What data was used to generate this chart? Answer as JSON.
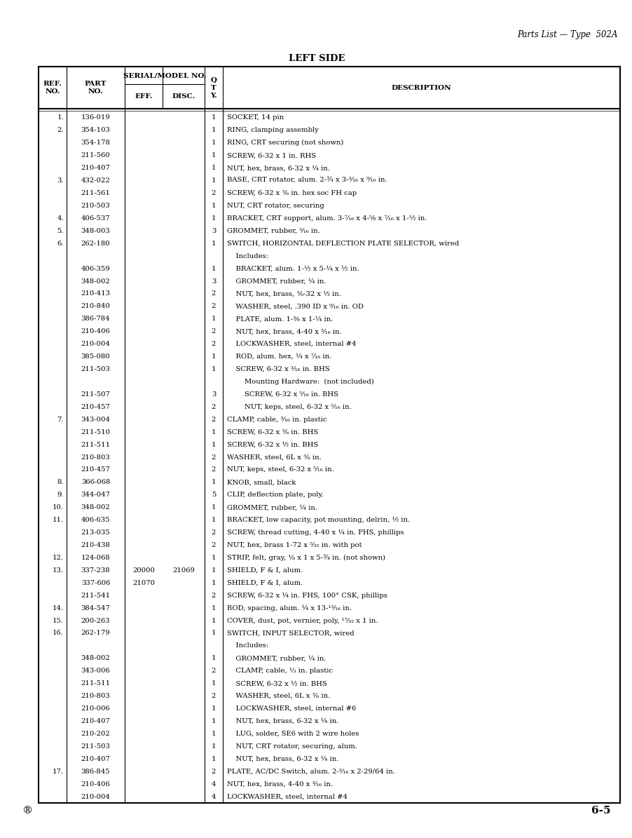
{
  "page_header_right": "Parts List — Type  502A",
  "page_title": "LEFT SIDE",
  "page_footer_left": "®",
  "page_footer_right": "6-5",
  "rows": [
    {
      "ref": "1.",
      "part": "136-019",
      "eff": "",
      "disc": "",
      "qty": "1",
      "desc": "SOCKET, 14 pin"
    },
    {
      "ref": "2.",
      "part": "354-103",
      "eff": "",
      "disc": "",
      "qty": "1",
      "desc": "RING, clamping assembly"
    },
    {
      "ref": "",
      "part": "354-178",
      "eff": "",
      "disc": "",
      "qty": "1",
      "desc": "RING, CRT securing (not shown)"
    },
    {
      "ref": "",
      "part": "211-560",
      "eff": "",
      "disc": "",
      "qty": "1",
      "desc": "SCREW, 6-32 x 1 in. RHS"
    },
    {
      "ref": "",
      "part": "210-407",
      "eff": "",
      "disc": "",
      "qty": "1",
      "desc": "NUT, hex, brass, 6-32 x ¼ in."
    },
    {
      "ref": "3.",
      "part": "432-022",
      "eff": "",
      "disc": "",
      "qty": "1",
      "desc": "BASE, CRT rotator, alum. 2-¾ x 3-³⁄₁₆ x ⁹⁄₁₆ in."
    },
    {
      "ref": "",
      "part": "211-561",
      "eff": "",
      "disc": "",
      "qty": "2",
      "desc": "SCREW, 6-32 x ⅜ in. hex soc FH cap"
    },
    {
      "ref": "",
      "part": "210-503",
      "eff": "",
      "disc": "",
      "qty": "1",
      "desc": "NUT, CRT rotator, securing"
    },
    {
      "ref": "4.",
      "part": "406-537",
      "eff": "",
      "disc": "",
      "qty": "1",
      "desc": "BRACKET, CRT support, alum. 3-⁷⁄₁₆ x 4-⁵⁄₈ x ⁷⁄₁₆ x 1-½ in."
    },
    {
      "ref": "5.",
      "part": "348-003",
      "eff": "",
      "disc": "",
      "qty": "3",
      "desc": "GROMMET, rubber, ⁵⁄₁₆ in."
    },
    {
      "ref": "6.",
      "part": "262-180",
      "eff": "",
      "disc": "",
      "qty": "1",
      "desc": "SWITCH, HORIZONTAL DEFLECTION PLATE SELECTOR, wired"
    },
    {
      "ref": "",
      "part": "",
      "eff": "",
      "disc": "",
      "qty": "",
      "desc": "    Includes:"
    },
    {
      "ref": "",
      "part": "406-359",
      "eff": "",
      "disc": "",
      "qty": "1",
      "desc": "    BRACKET, alum. 1-½ x 5-¼ x ½ in."
    },
    {
      "ref": "",
      "part": "348-002",
      "eff": "",
      "disc": "",
      "qty": "3",
      "desc": "    GROMMET, rubber, ¼ in."
    },
    {
      "ref": "",
      "part": "210-413",
      "eff": "",
      "disc": "",
      "qty": "2",
      "desc": "    NUT, hex, brass, ⅜-32 x ½ in."
    },
    {
      "ref": "",
      "part": "210-840",
      "eff": "",
      "disc": "",
      "qty": "2",
      "desc": "    WASHER, steel, .390 ID x ⁹⁄₁₆ in. OD"
    },
    {
      "ref": "",
      "part": "386-784",
      "eff": "",
      "disc": "",
      "qty": "1",
      "desc": "    PLATE, alum. 1-³⁄₈ x 1-¼ in."
    },
    {
      "ref": "",
      "part": "210-406",
      "eff": "",
      "disc": "",
      "qty": "2",
      "desc": "    NUT, hex, brass, 4-40 x ³⁄₁₆ in."
    },
    {
      "ref": "",
      "part": "210-004",
      "eff": "",
      "disc": "",
      "qty": "2",
      "desc": "    LOCKWASHER, steel, internal #4"
    },
    {
      "ref": "",
      "part": "385-080",
      "eff": "",
      "disc": "",
      "qty": "1",
      "desc": "    ROD, alum. hex, ¼ x ⁷⁄₁₆ in."
    },
    {
      "ref": "",
      "part": "211-503",
      "eff": "",
      "disc": "",
      "qty": "1",
      "desc": "    SCREW, 6-32 x ³⁄₁₆ in. BHS"
    },
    {
      "ref": "",
      "part": "",
      "eff": "",
      "disc": "",
      "qty": "",
      "desc": "        Mounting Hardware:  (not included)"
    },
    {
      "ref": "",
      "part": "211-507",
      "eff": "",
      "disc": "",
      "qty": "3",
      "desc": "        SCREW, 6-32 x ⁵⁄₁₆ in. BHS"
    },
    {
      "ref": "",
      "part": "210-457",
      "eff": "",
      "disc": "",
      "qty": "2",
      "desc": "        NUT, keps, steel, 6-32 x ⁵⁄₁₆ in."
    },
    {
      "ref": "7.",
      "part": "343-004",
      "eff": "",
      "disc": "",
      "qty": "2",
      "desc": "CLAMP, cable, ³⁄₁₆ in. plastic"
    },
    {
      "ref": "",
      "part": "211-510",
      "eff": "",
      "disc": "",
      "qty": "1",
      "desc": "SCREW, 6-32 x ⅜ in. BHS"
    },
    {
      "ref": "",
      "part": "211-511",
      "eff": "",
      "disc": "",
      "qty": "1",
      "desc": "SCREW, 6-32 x ½ in. BHS"
    },
    {
      "ref": "",
      "part": "210-803",
      "eff": "",
      "disc": "",
      "qty": "2",
      "desc": "WASHER, steel, 6L x ⅜ in."
    },
    {
      "ref": "",
      "part": "210-457",
      "eff": "",
      "disc": "",
      "qty": "2",
      "desc": "NUT, keps, steel, 6-32 x ⁵⁄₁₆ in."
    },
    {
      "ref": "8.",
      "part": "366-068",
      "eff": "",
      "disc": "",
      "qty": "1",
      "desc": "KNOB, small, black"
    },
    {
      "ref": "9.",
      "part": "344-047",
      "eff": "",
      "disc": "",
      "qty": "5",
      "desc": "CLIP, deflection plate, poly."
    },
    {
      "ref": "10.",
      "part": "348-002",
      "eff": "",
      "disc": "",
      "qty": "1",
      "desc": "GROMMET, rubber, ¼ in."
    },
    {
      "ref": "11.",
      "part": "406-635",
      "eff": "",
      "disc": "",
      "qty": "1",
      "desc": "BRACKET, low capacity, pot mounting, delrin, ½ in."
    },
    {
      "ref": "",
      "part": "213-035",
      "eff": "",
      "disc": "",
      "qty": "2",
      "desc": "SCREW, thread cutting, 4-40 x ¼ in. PHS, phillips"
    },
    {
      "ref": "",
      "part": "210-438",
      "eff": "",
      "disc": "",
      "qty": "2",
      "desc": "NUT, hex, brass 1-72 x ⁵⁄₃₂ in. with pot"
    },
    {
      "ref": "12.",
      "part": "124-068",
      "eff": "",
      "disc": "",
      "qty": "1",
      "desc": "STRIP, felt, gray, ⅛ x 1 x 5-¾ in. (not shown)"
    },
    {
      "ref": "13.",
      "part": "337-238",
      "eff": "20000",
      "disc": "21069",
      "qty": "1",
      "desc": "SHIELD, F & I, alum."
    },
    {
      "ref": "",
      "part": "337-606",
      "eff": "21070",
      "disc": "",
      "qty": "1",
      "desc": "SHIELD, F & I, alum."
    },
    {
      "ref": "",
      "part": "211-541",
      "eff": "",
      "disc": "",
      "qty": "2",
      "desc": "SCREW, 6-32 x ¼ in. FHS, 100° CSK, phillips"
    },
    {
      "ref": "14.",
      "part": "384-547",
      "eff": "",
      "disc": "",
      "qty": "1",
      "desc": "ROD, spacing, alum. ¼ x 13-¹³⁄₁₆ in."
    },
    {
      "ref": "15.",
      "part": "200-263",
      "eff": "",
      "disc": "",
      "qty": "1",
      "desc": "COVER, dust, pot, vernier, poly, ¹⁷⁄₃₂ x 1 in."
    },
    {
      "ref": "16.",
      "part": "262-179",
      "eff": "",
      "disc": "",
      "qty": "1",
      "desc": "SWITCH, INPUT SELECTOR, wired"
    },
    {
      "ref": "",
      "part": "",
      "eff": "",
      "disc": "",
      "qty": "",
      "desc": "    Includes:"
    },
    {
      "ref": "",
      "part": "348-002",
      "eff": "",
      "disc": "",
      "qty": "1",
      "desc": "    GROMMET, rubber, ¼ in."
    },
    {
      "ref": "",
      "part": "343-006",
      "eff": "",
      "disc": "",
      "qty": "2",
      "desc": "    CLAMP, cable, ⅓ in. plastic"
    },
    {
      "ref": "",
      "part": "211-511",
      "eff": "",
      "disc": "",
      "qty": "1",
      "desc": "    SCREW, 6-32 x ½ in. BHS"
    },
    {
      "ref": "",
      "part": "210-803",
      "eff": "",
      "disc": "",
      "qty": "2",
      "desc": "    WASHER, steel, 6L x ⅜ in."
    },
    {
      "ref": "",
      "part": "210-006",
      "eff": "",
      "disc": "",
      "qty": "1",
      "desc": "    LOCKWASHER, steel, internal #6"
    },
    {
      "ref": "",
      "part": "210-407",
      "eff": "",
      "disc": "",
      "qty": "1",
      "desc": "    NUT, hex, brass, 6-32 x ¼ in."
    },
    {
      "ref": "",
      "part": "210-202",
      "eff": "",
      "disc": "",
      "qty": "1",
      "desc": "    LUG, solder, SE6 with 2 wire holes"
    },
    {
      "ref": "",
      "part": "211-503",
      "eff": "",
      "disc": "",
      "qty": "1",
      "desc": "    NUT, CRT rotator, securing, alum."
    },
    {
      "ref": "",
      "part": "210-407",
      "eff": "",
      "disc": "",
      "qty": "1",
      "desc": "    NUT, hex, brass, 6-32 x ¼ in."
    },
    {
      "ref": "17.",
      "part": "386-845",
      "eff": "",
      "disc": "",
      "qty": "2",
      "desc": "PLATE, AC/DC Switch, alum. 2-³⁄₁₆ x 2-29/64 in."
    },
    {
      "ref": "",
      "part": "210-406",
      "eff": "",
      "disc": "",
      "qty": "4",
      "desc": "NUT, hex, brass, 4-40 x ³⁄₁₆ in."
    },
    {
      "ref": "",
      "part": "210-004",
      "eff": "",
      "disc": "",
      "qty": "4",
      "desc": "LOCKWASHER, steel, internal #4"
    }
  ],
  "bg_color": "#ffffff",
  "font_size": 7.2,
  "header_font_size": 7.5,
  "title_font_size": 9.5
}
